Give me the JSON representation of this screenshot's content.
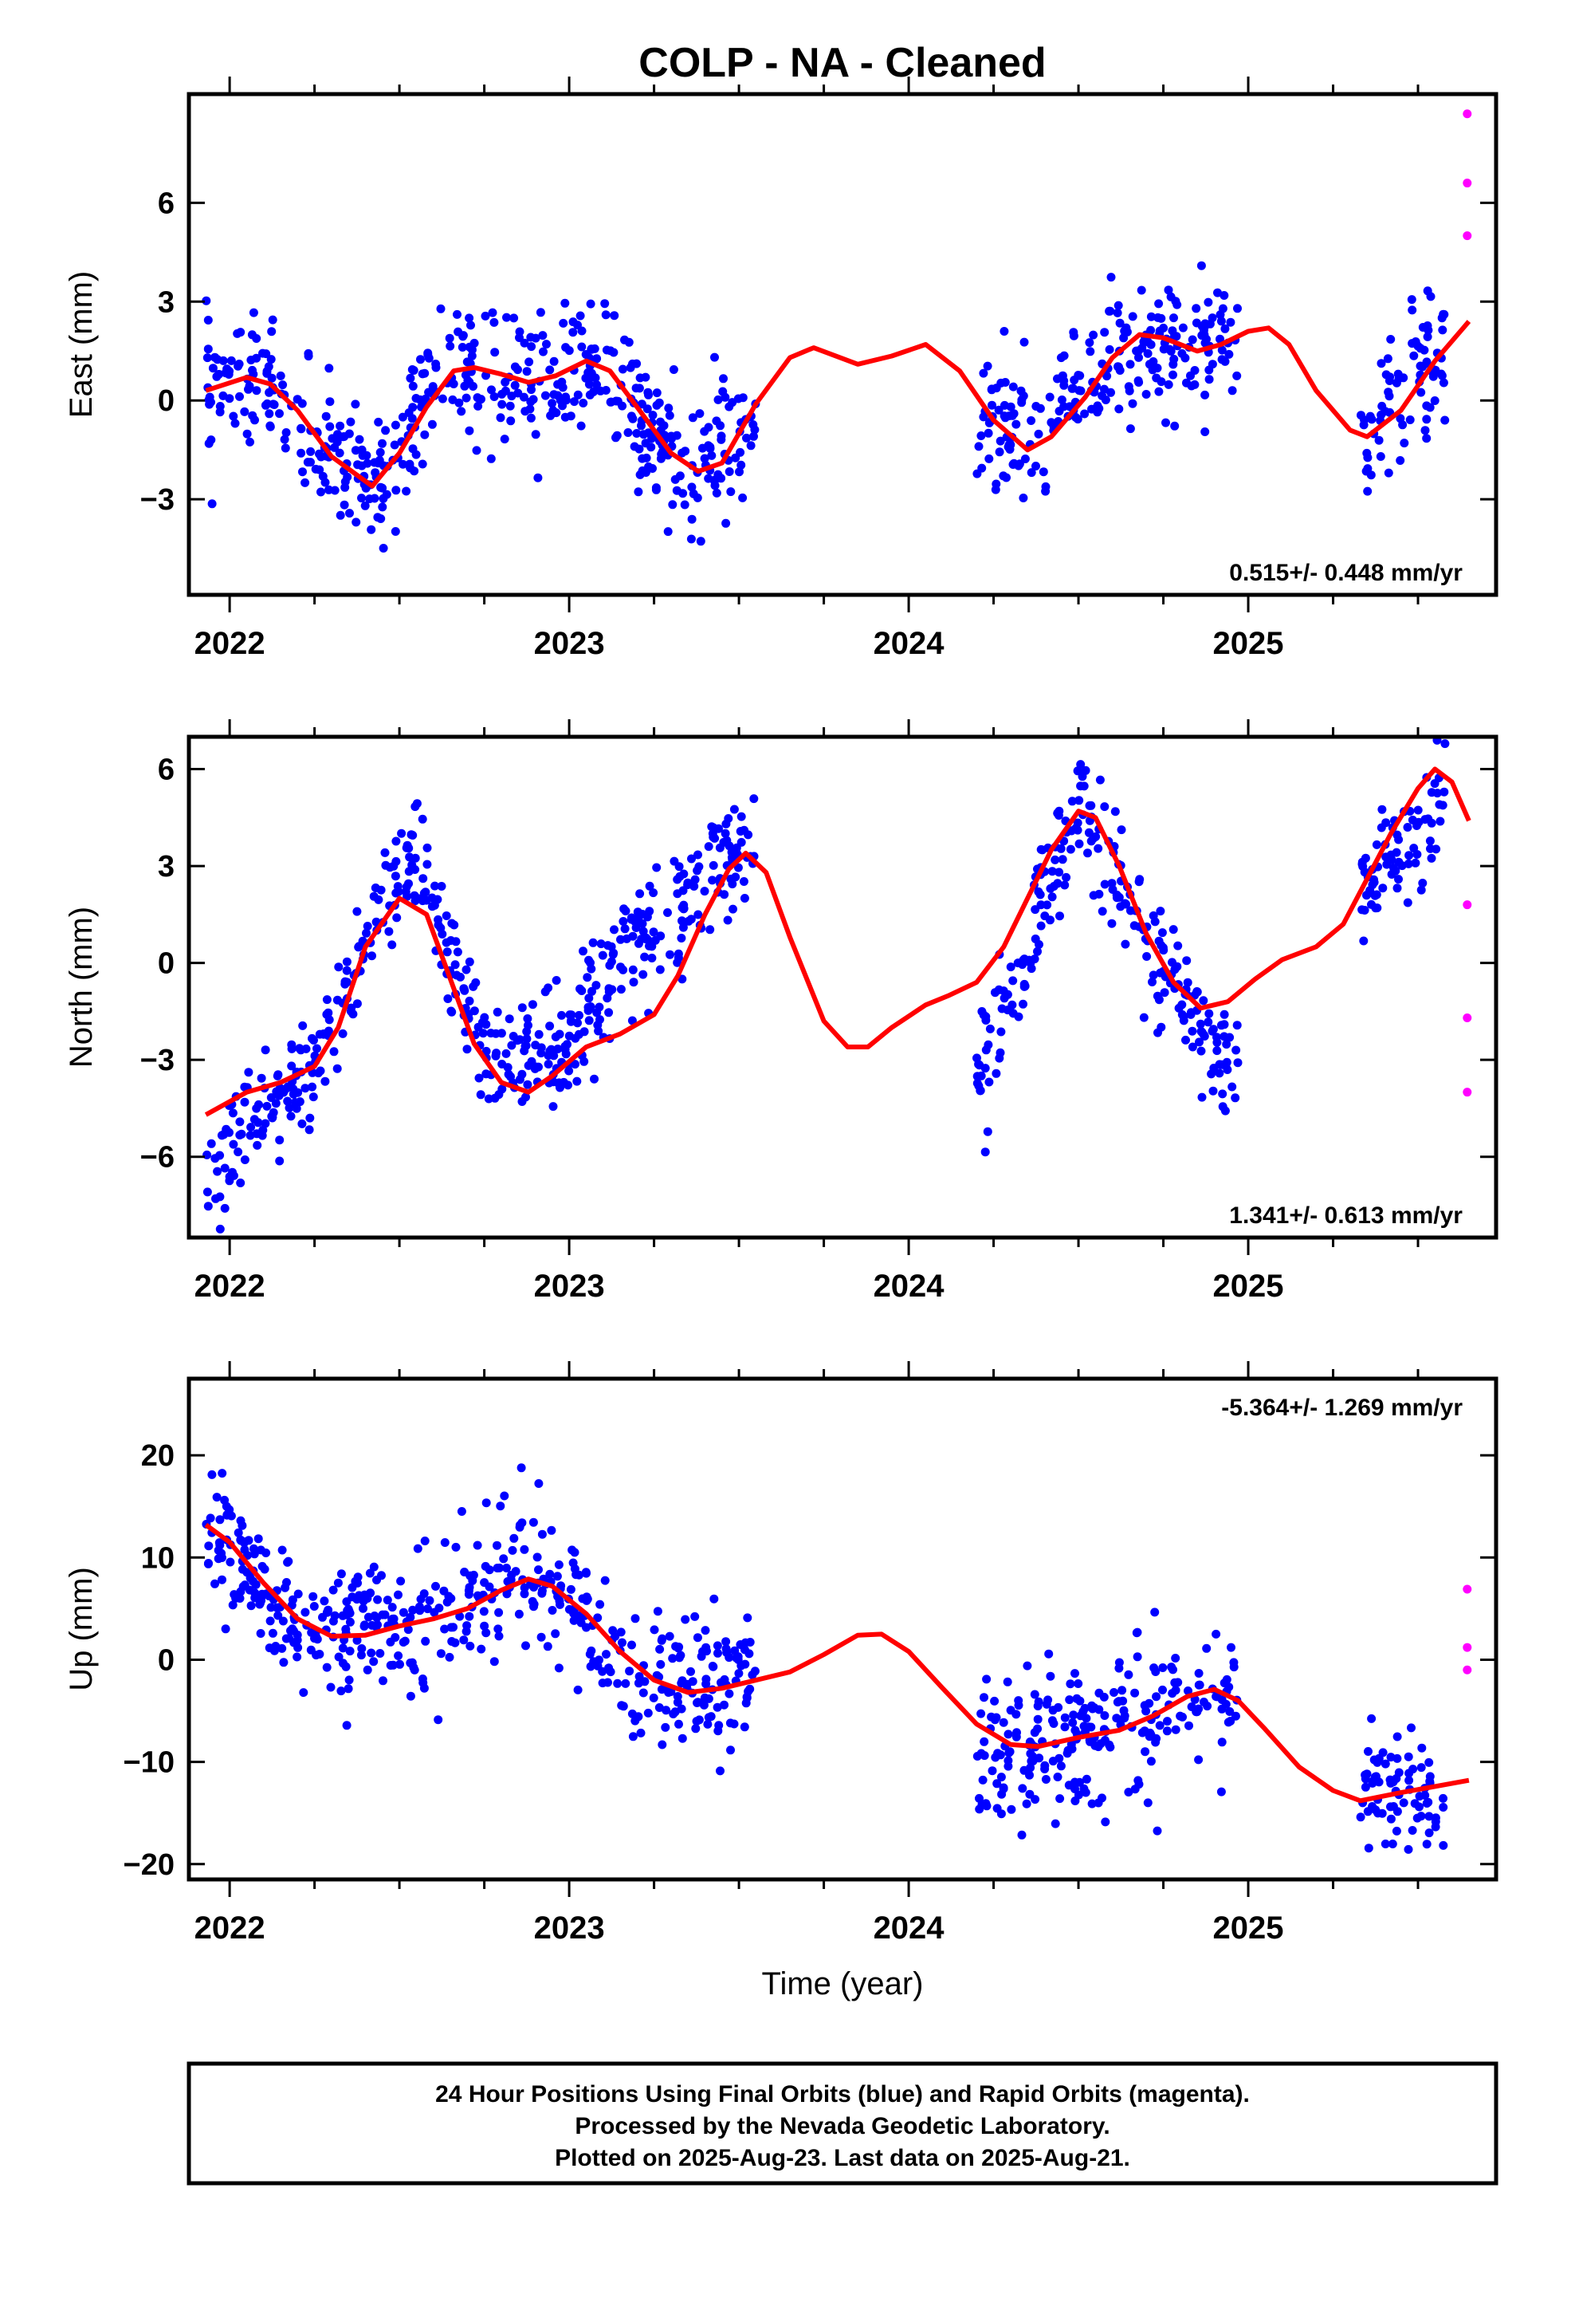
{
  "title": "COLP  - NA - Cleaned",
  "colors": {
    "final_orbits": "#0000ff",
    "rapid_orbits": "#ff00ff",
    "trend": "#ff0000",
    "frame": "#000000"
  },
  "footer": {
    "line1": "24 Hour Positions Using Final Orbits (blue) and Rapid Orbits (magenta).",
    "line2": "Processed by the Nevada Geodetic Laboratory.",
    "line3": "Plotted on 2025-Aug-23. Last data on 2025-Aug-21."
  },
  "chart_data": [
    {
      "type": "scatter",
      "component": "east",
      "ylabel": "East (mm)",
      "xlabel": "",
      "xlim": [
        2021.88,
        2025.73
      ],
      "ylim": [
        -5.9,
        9.3
      ],
      "yticks": [
        -3,
        0,
        3,
        6
      ],
      "xticks": [
        2022,
        2023,
        2024,
        2025
      ],
      "rate_label": "0.515+/- 0.448 mm/yr",
      "rate_position": "bottom-right",
      "data_spans": [
        [
          2021.93,
          2023.55
        ],
        [
          2024.2,
          2024.97
        ],
        [
          2025.33,
          2025.58
        ]
      ],
      "series": [
        {
          "name": "Final Orbits (blue)",
          "noise": 1.0,
          "curve": [
            [
              2021.93,
              0.3
            ],
            [
              2022.05,
              0.6
            ],
            [
              2022.15,
              0.0
            ],
            [
              2022.25,
              -1.2
            ],
            [
              2022.35,
              -2.3
            ],
            [
              2022.42,
              -2.55
            ],
            [
              2022.5,
              -1.4
            ],
            [
              2022.6,
              0.5
            ],
            [
              2022.7,
              1.0
            ],
            [
              2022.8,
              0.7
            ],
            [
              2022.9,
              0.5
            ],
            [
              2023.0,
              1.1
            ],
            [
              2023.08,
              1.0
            ],
            [
              2023.2,
              -0.3
            ],
            [
              2023.3,
              -1.8
            ],
            [
              2023.38,
              -2.15
            ],
            [
              2023.5,
              -0.7
            ],
            [
              2024.2,
              -0.4
            ],
            [
              2024.3,
              -1.1
            ],
            [
              2024.37,
              -1.6
            ],
            [
              2024.45,
              -0.8
            ],
            [
              2024.55,
              0.6
            ],
            [
              2024.65,
              2.0
            ],
            [
              2024.8,
              1.6
            ],
            [
              2024.95,
              1.8
            ],
            [
              2025.35,
              -1.0
            ],
            [
              2025.45,
              0.2
            ],
            [
              2025.58,
              1.5
            ]
          ]
        },
        {
          "name": "Rapid Orbits (magenta)",
          "points": [
            [
              2025.645,
              8.7
            ],
            [
              2025.645,
              6.6
            ],
            [
              2025.645,
              5.0
            ]
          ]
        },
        {
          "name": "Trend",
          "curve": [
            [
              2021.93,
              0.3
            ],
            [
              2022.05,
              0.7
            ],
            [
              2022.12,
              0.5
            ],
            [
              2022.2,
              -0.3
            ],
            [
              2022.3,
              -1.7
            ],
            [
              2022.42,
              -2.6
            ],
            [
              2022.5,
              -1.6
            ],
            [
              2022.58,
              -0.2
            ],
            [
              2022.66,
              0.9
            ],
            [
              2022.72,
              1.0
            ],
            [
              2022.8,
              0.8
            ],
            [
              2022.88,
              0.55
            ],
            [
              2022.96,
              0.75
            ],
            [
              2023.05,
              1.2
            ],
            [
              2023.12,
              0.9
            ],
            [
              2023.2,
              -0.2
            ],
            [
              2023.3,
              -1.6
            ],
            [
              2023.38,
              -2.15
            ],
            [
              2023.45,
              -1.9
            ],
            [
              2023.55,
              -0.1
            ],
            [
              2023.65,
              1.3
            ],
            [
              2023.72,
              1.6
            ],
            [
              2023.85,
              1.1
            ],
            [
              2023.95,
              1.35
            ],
            [
              2024.05,
              1.7
            ],
            [
              2024.15,
              0.9
            ],
            [
              2024.25,
              -0.6
            ],
            [
              2024.35,
              -1.5
            ],
            [
              2024.42,
              -1.1
            ],
            [
              2024.52,
              0.1
            ],
            [
              2024.6,
              1.3
            ],
            [
              2024.68,
              2.0
            ],
            [
              2024.75,
              1.9
            ],
            [
              2024.85,
              1.5
            ],
            [
              2024.92,
              1.7
            ],
            [
              2025.0,
              2.1
            ],
            [
              2025.06,
              2.2
            ],
            [
              2025.12,
              1.7
            ],
            [
              2025.2,
              0.3
            ],
            [
              2025.3,
              -0.9
            ],
            [
              2025.35,
              -1.1
            ],
            [
              2025.45,
              -0.3
            ],
            [
              2025.55,
              1.2
            ],
            [
              2025.65,
              2.4
            ]
          ]
        }
      ]
    },
    {
      "type": "scatter",
      "component": "north",
      "ylabel": "North (mm)",
      "xlabel": "",
      "xlim": [
        2021.88,
        2025.73
      ],
      "ylim": [
        -8.5,
        7.0
      ],
      "yticks": [
        -6,
        -3,
        0,
        3,
        6
      ],
      "xticks": [
        2022,
        2023,
        2024,
        2025
      ],
      "rate_label": "1.341+/- 0.613 mm/yr",
      "rate_position": "bottom-right",
      "data_spans": [
        [
          2021.93,
          2023.55
        ],
        [
          2024.2,
          2024.97
        ],
        [
          2025.33,
          2025.58
        ]
      ],
      "series": [
        {
          "name": "Final Orbits (blue)",
          "noise": 0.9,
          "curve": [
            [
              2021.93,
              -6.8
            ],
            [
              2022.05,
              -5.0
            ],
            [
              2022.15,
              -4.3
            ],
            [
              2022.25,
              -3.2
            ],
            [
              2022.35,
              -0.8
            ],
            [
              2022.45,
              2.0
            ],
            [
              2022.55,
              3.0
            ],
            [
              2022.62,
              1.0
            ],
            [
              2022.7,
              -1.5
            ],
            [
              2022.8,
              -3.2
            ],
            [
              2022.9,
              -3.0
            ],
            [
              2023.0,
              -2.5
            ],
            [
              2023.1,
              -0.5
            ],
            [
              2023.2,
              0.5
            ],
            [
              2023.3,
              1.4
            ],
            [
              2023.4,
              2.8
            ],
            [
              2023.5,
              3.6
            ],
            [
              2024.2,
              -3.5
            ],
            [
              2024.3,
              -1.0
            ],
            [
              2024.4,
              2.0
            ],
            [
              2024.5,
              4.8
            ],
            [
              2024.6,
              3.0
            ],
            [
              2024.7,
              0.8
            ],
            [
              2024.8,
              -1.0
            ],
            [
              2024.9,
              -3.0
            ],
            [
              2024.97,
              -3.2
            ],
            [
              2025.33,
              2.0
            ],
            [
              2025.45,
              3.8
            ],
            [
              2025.58,
              5.0
            ]
          ]
        },
        {
          "name": "Rapid Orbits (magenta)",
          "points": [
            [
              2025.645,
              1.8
            ],
            [
              2025.645,
              -1.7
            ],
            [
              2025.645,
              -4.0
            ]
          ]
        },
        {
          "name": "Trend",
          "curve": [
            [
              2021.93,
              -4.7
            ],
            [
              2022.05,
              -4.0
            ],
            [
              2022.15,
              -3.7
            ],
            [
              2022.25,
              -3.2
            ],
            [
              2022.32,
              -2.0
            ],
            [
              2022.4,
              0.5
            ],
            [
              2022.5,
              2.0
            ],
            [
              2022.58,
              1.5
            ],
            [
              2022.65,
              -0.5
            ],
            [
              2022.72,
              -2.5
            ],
            [
              2022.8,
              -3.7
            ],
            [
              2022.88,
              -4.0
            ],
            [
              2022.95,
              -3.5
            ],
            [
              2023.05,
              -2.6
            ],
            [
              2023.15,
              -2.2
            ],
            [
              2023.25,
              -1.6
            ],
            [
              2023.32,
              -0.4
            ],
            [
              2023.4,
              1.5
            ],
            [
              2023.47,
              2.9
            ],
            [
              2023.52,
              3.4
            ],
            [
              2023.58,
              2.8
            ],
            [
              2023.65,
              0.8
            ],
            [
              2023.75,
              -1.8
            ],
            [
              2023.82,
              -2.6
            ],
            [
              2023.88,
              -2.6
            ],
            [
              2023.95,
              -2.0
            ],
            [
              2024.05,
              -1.3
            ],
            [
              2024.12,
              -1.0
            ],
            [
              2024.2,
              -0.6
            ],
            [
              2024.28,
              0.5
            ],
            [
              2024.35,
              2.0
            ],
            [
              2024.42,
              3.5
            ],
            [
              2024.5,
              4.7
            ],
            [
              2024.55,
              4.5
            ],
            [
              2024.62,
              3.0
            ],
            [
              2024.7,
              0.9
            ],
            [
              2024.78,
              -0.6
            ],
            [
              2024.86,
              -1.4
            ],
            [
              2024.94,
              -1.2
            ],
            [
              2025.02,
              -0.5
            ],
            [
              2025.1,
              0.1
            ],
            [
              2025.2,
              0.5
            ],
            [
              2025.28,
              1.2
            ],
            [
              2025.35,
              2.6
            ],
            [
              2025.42,
              4.0
            ],
            [
              2025.5,
              5.4
            ],
            [
              2025.55,
              6.0
            ],
            [
              2025.6,
              5.6
            ],
            [
              2025.65,
              4.4
            ]
          ]
        }
      ]
    },
    {
      "type": "scatter",
      "component": "up",
      "ylabel": "Up (mm)",
      "xlabel": "Time (year)",
      "xlim": [
        2021.88,
        2025.73
      ],
      "ylim": [
        -21.5,
        27.5
      ],
      "yticks": [
        -20,
        -10,
        0,
        10,
        20
      ],
      "xticks": [
        2022,
        2023,
        2024,
        2025
      ],
      "rate_label": "-5.364+/- 1.269 mm/yr",
      "rate_position": "top-right",
      "data_spans": [
        [
          2021.93,
          2023.55
        ],
        [
          2024.2,
          2024.97
        ],
        [
          2025.33,
          2025.58
        ]
      ],
      "series": [
        {
          "name": "Final Orbits (blue)",
          "noise": 3.5,
          "curve": [
            [
              2021.93,
              14.0
            ],
            [
              2022.0,
              11.0
            ],
            [
              2022.1,
              6.0
            ],
            [
              2022.2,
              3.0
            ],
            [
              2022.3,
              2.0
            ],
            [
              2022.4,
              2.5
            ],
            [
              2022.5,
              3.5
            ],
            [
              2022.6,
              4.5
            ],
            [
              2022.7,
              5.5
            ],
            [
              2022.8,
              7.5
            ],
            [
              2022.9,
              8.0
            ],
            [
              2023.0,
              5.5
            ],
            [
              2023.1,
              1.5
            ],
            [
              2023.2,
              -2.0
            ],
            [
              2023.3,
              -3.5
            ],
            [
              2023.4,
              -3.0
            ],
            [
              2023.5,
              -2.5
            ],
            [
              2024.2,
              -8.0
            ],
            [
              2024.35,
              -8.0
            ],
            [
              2024.5,
              -7.5
            ],
            [
              2024.65,
              -6.5
            ],
            [
              2024.8,
              -4.0
            ],
            [
              2024.97,
              -3.5
            ],
            [
              2025.33,
              -13.5
            ],
            [
              2025.45,
              -12.0
            ],
            [
              2025.58,
              -12.5
            ]
          ]
        },
        {
          "name": "Rapid Orbits (magenta)",
          "points": [
            [
              2025.645,
              6.9
            ],
            [
              2025.645,
              1.2
            ],
            [
              2025.645,
              -1.0
            ]
          ]
        },
        {
          "name": "Trend",
          "curve": [
            [
              2021.93,
              13.2
            ],
            [
              2022.0,
              11.5
            ],
            [
              2022.1,
              7.5
            ],
            [
              2022.2,
              4.0
            ],
            [
              2022.3,
              2.3
            ],
            [
              2022.4,
              2.4
            ],
            [
              2022.5,
              3.3
            ],
            [
              2022.6,
              4.0
            ],
            [
              2022.7,
              5.0
            ],
            [
              2022.8,
              6.8
            ],
            [
              2022.88,
              7.9
            ],
            [
              2022.95,
              7.2
            ],
            [
              2023.05,
              4.5
            ],
            [
              2023.15,
              0.8
            ],
            [
              2023.25,
              -2.0
            ],
            [
              2023.35,
              -3.2
            ],
            [
              2023.45,
              -2.8
            ],
            [
              2023.55,
              -2.0
            ],
            [
              2023.65,
              -1.2
            ],
            [
              2023.75,
              0.5
            ],
            [
              2023.85,
              2.4
            ],
            [
              2023.92,
              2.5
            ],
            [
              2024.0,
              0.8
            ],
            [
              2024.1,
              -2.8
            ],
            [
              2024.2,
              -6.3
            ],
            [
              2024.3,
              -8.3
            ],
            [
              2024.38,
              -8.5
            ],
            [
              2024.5,
              -7.6
            ],
            [
              2024.62,
              -6.9
            ],
            [
              2024.72,
              -5.5
            ],
            [
              2024.82,
              -3.6
            ],
            [
              2024.9,
              -2.9
            ],
            [
              2024.97,
              -4.0
            ],
            [
              2025.05,
              -6.8
            ],
            [
              2025.15,
              -10.5
            ],
            [
              2025.25,
              -12.8
            ],
            [
              2025.33,
              -13.8
            ],
            [
              2025.45,
              -13.0
            ],
            [
              2025.55,
              -12.4
            ],
            [
              2025.65,
              -11.8
            ]
          ]
        }
      ]
    }
  ]
}
